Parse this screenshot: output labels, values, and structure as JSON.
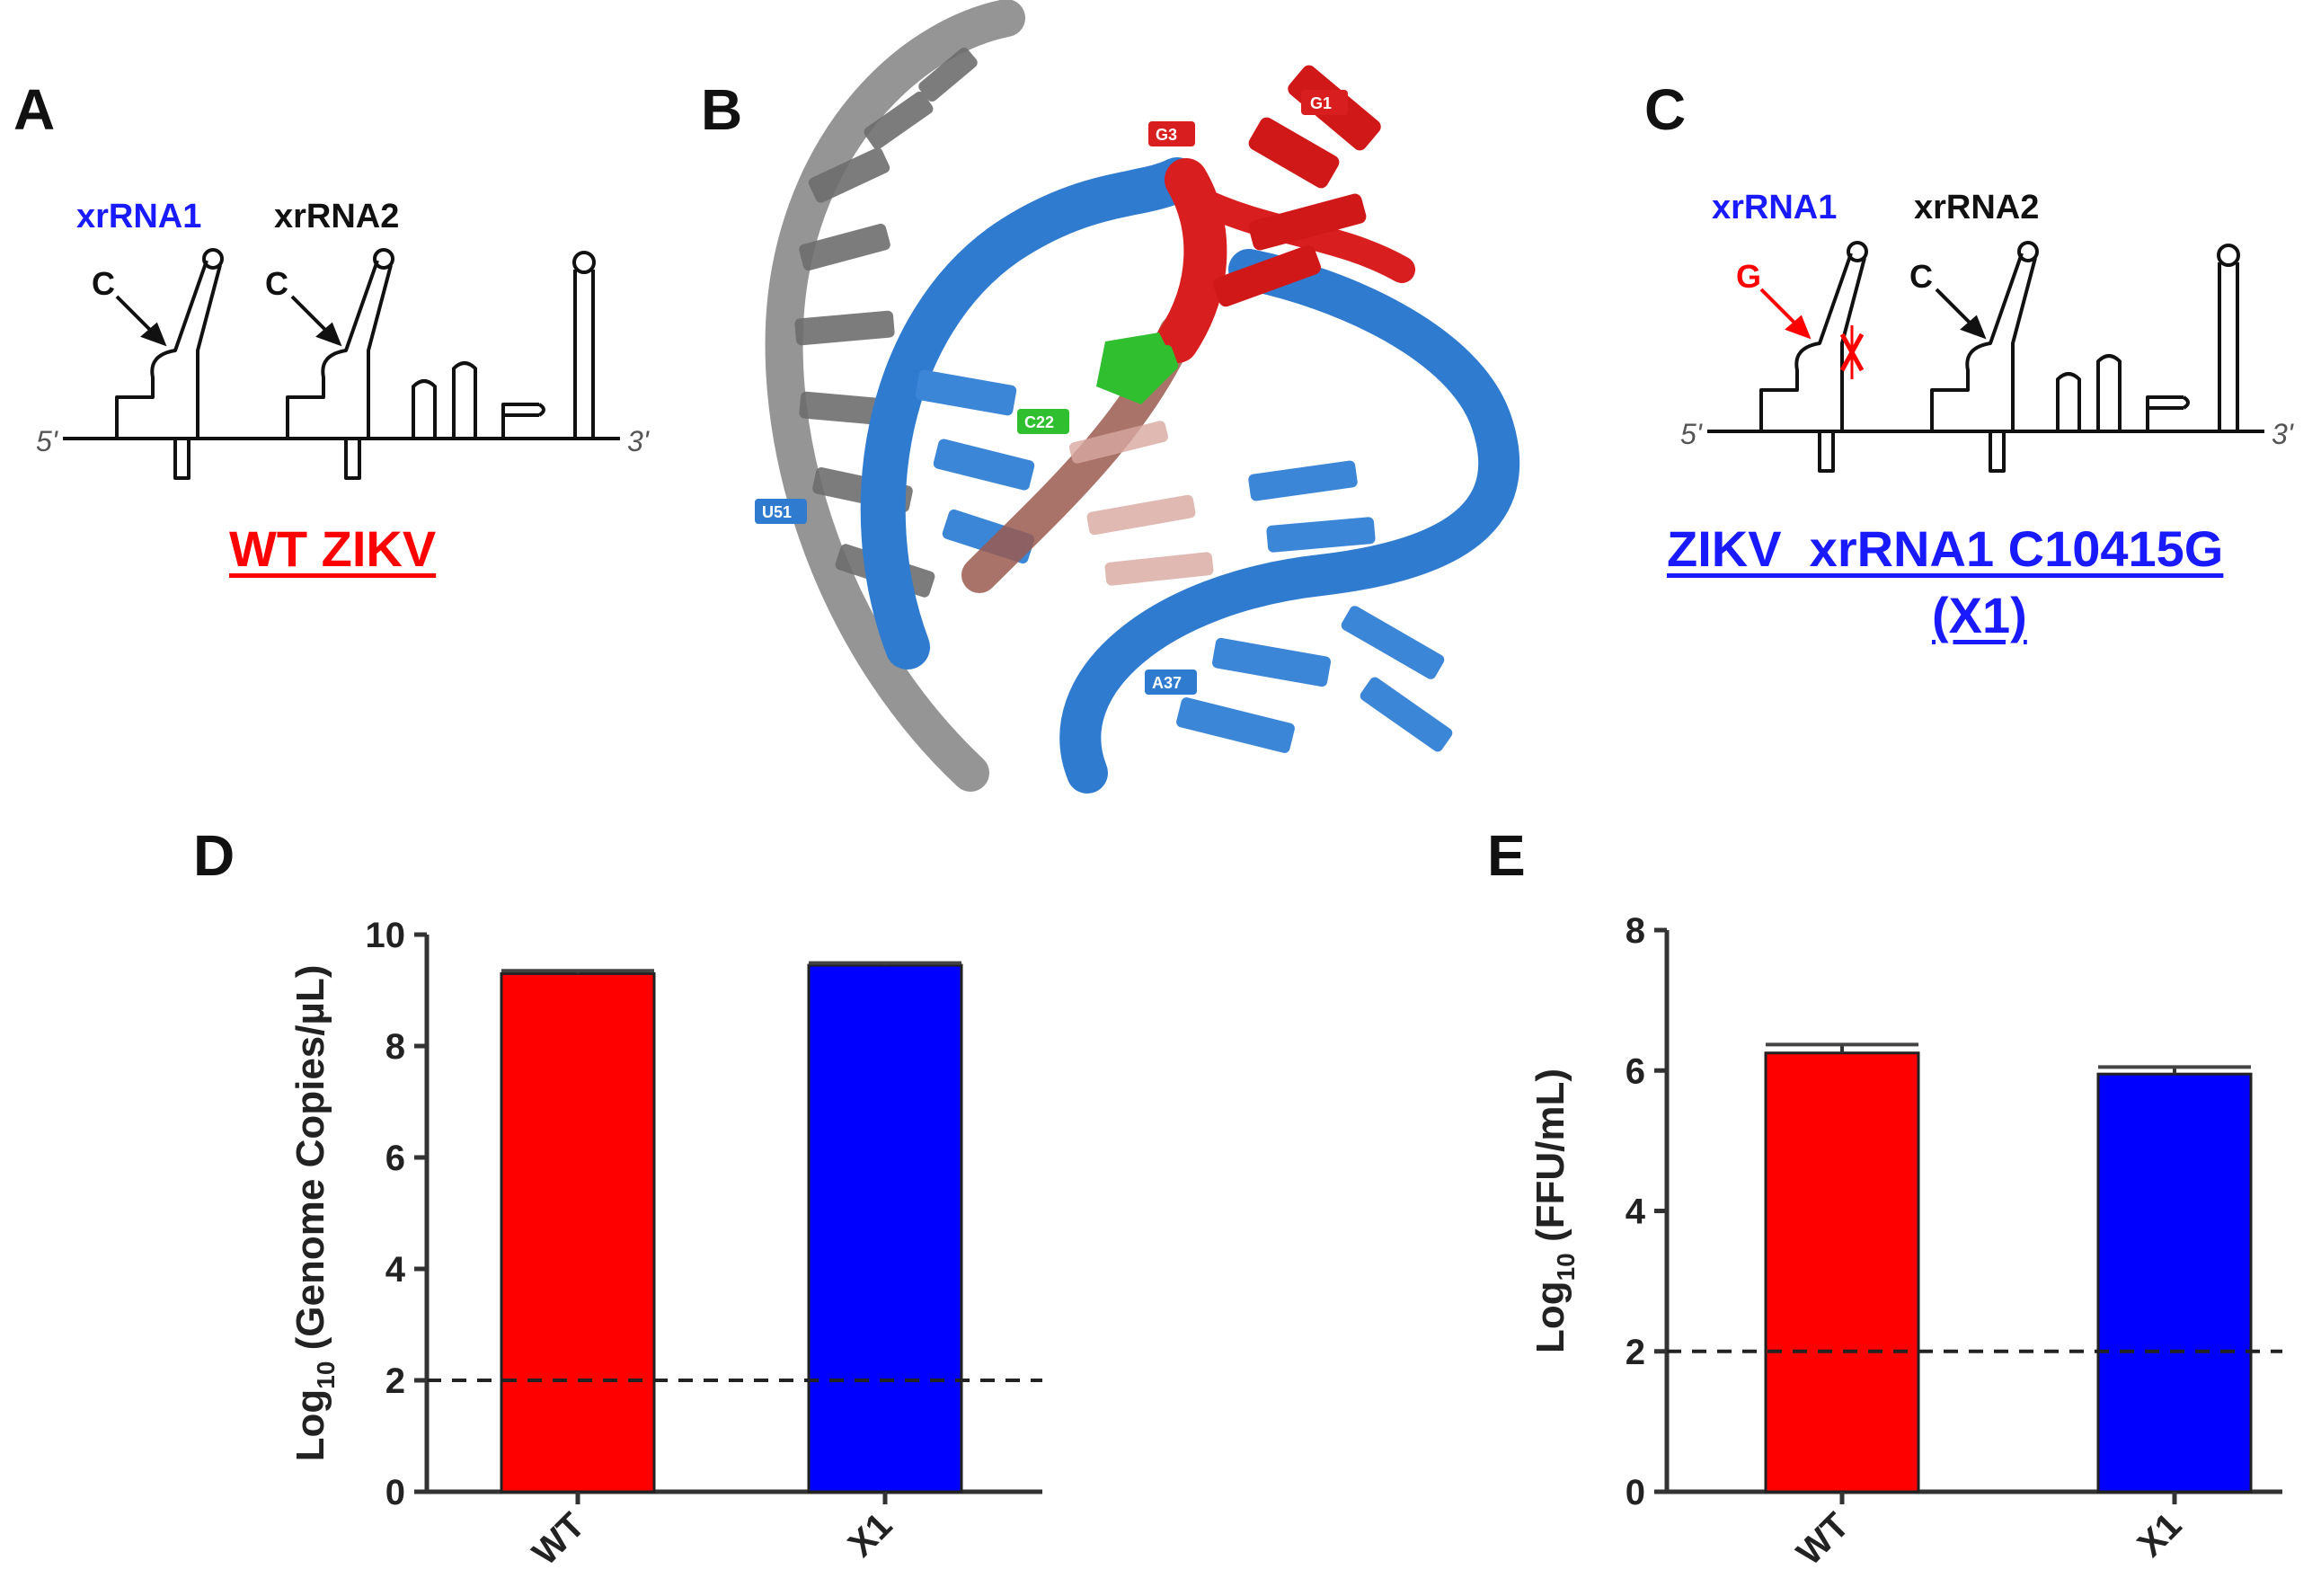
{
  "colors": {
    "red": "#ff0000",
    "blue": "#0000ff",
    "rna_blue": "#2f7bd0",
    "rna_gray": "#8a8a8a",
    "rna_green": "#2fbf2f"
  },
  "panels": {
    "A": {
      "letter": "A",
      "label_xr1": "xrRNA1",
      "label_xr2": "xrRNA2",
      "mut1": "C",
      "mut2": "C",
      "five_prime": "5'",
      "three_prime": "3'",
      "caption": "WT ZIKV"
    },
    "B": {
      "letter": "B",
      "tags": {
        "g3": "G3",
        "g1": "G1",
        "c22": "C22",
        "u51": "U51",
        "a37": "A37"
      }
    },
    "C": {
      "letter": "C",
      "label_xr1": "xrRNA1",
      "label_xr2": "xrRNA2",
      "mut1": "G",
      "mut2": "C",
      "five_prime": "5'",
      "three_prime": "3'",
      "caption_line1": "ZIKV  xrRNA1 C10415G",
      "caption_line2": "(X1)"
    }
  },
  "chart_data": [
    {
      "panel": "D",
      "type": "bar",
      "categories": [
        "WT",
        "X1"
      ],
      "values": [
        9.3,
        9.45
      ],
      "errors": [
        0.05,
        0.04
      ],
      "colors": [
        "#ff0000",
        "#0000ff"
      ],
      "ylabel_main": "Log",
      "ylabel_sub": "10",
      "ylabel_rest": " (Genome Copies/µL)",
      "ylim": [
        0,
        10
      ],
      "yticks": [
        "0",
        "2",
        "4",
        "6",
        "8",
        "10"
      ],
      "limit_of_detection": 2
    },
    {
      "panel": "E",
      "type": "bar",
      "categories": [
        "WT",
        "X1"
      ],
      "values": [
        6.25,
        5.95
      ],
      "errors": [
        0.12,
        0.1
      ],
      "colors": [
        "#ff0000",
        "#0000ff"
      ],
      "ylabel_main": "Log",
      "ylabel_sub": "10",
      "ylabel_rest": " (FFU/mL)",
      "ylim": [
        0,
        8
      ],
      "yticks": [
        "0",
        "2",
        "4",
        "6",
        "8"
      ],
      "limit_of_detection": 2
    }
  ]
}
